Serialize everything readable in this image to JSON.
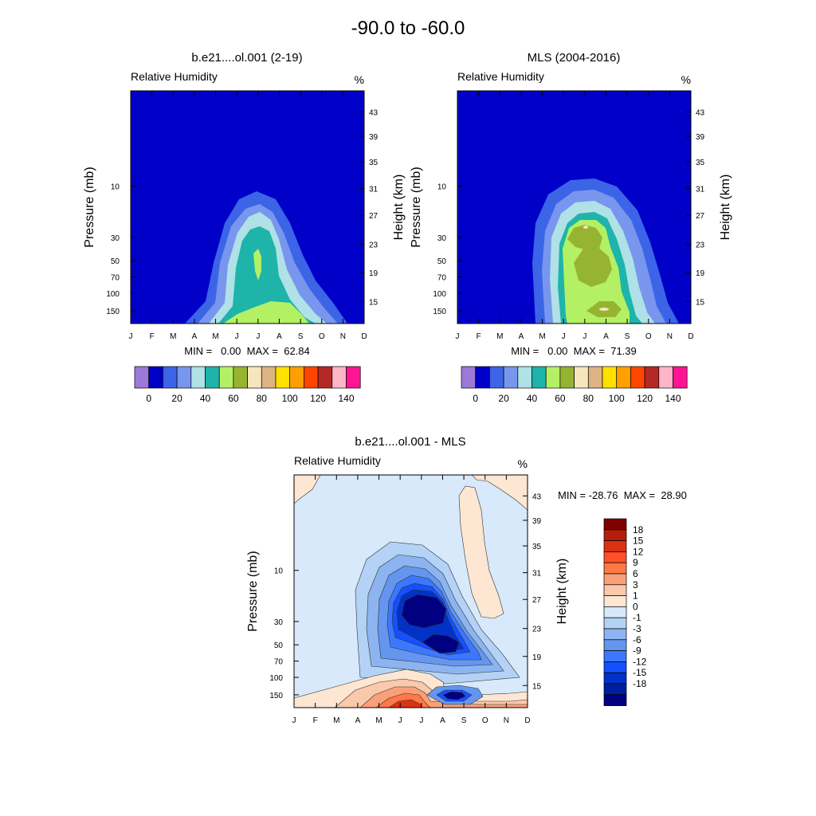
{
  "figure": {
    "title": "-90.0 to -60.0"
  },
  "palettes": {
    "abs_colors": [
      "#9b79d9",
      "#0000c8",
      "#3c64e6",
      "#7896ee",
      "#afe1e6",
      "#1eb4aa",
      "#b4f064",
      "#96b432",
      "#f5e6be",
      "#dcb482",
      "#ffe100",
      "#ffa000",
      "#ff4600",
      "#b42828",
      "#ffb4c8",
      "#ff1493"
    ],
    "abs_labels": [
      "0",
      "20",
      "40",
      "60",
      "80",
      "100",
      "120",
      "140"
    ],
    "diff_colors": [
      "#000080",
      "#001ea0",
      "#0032c8",
      "#1450ff",
      "#3c78ff",
      "#6496f0",
      "#8cb4f0",
      "#b4d2f5",
      "#d7e9fa",
      "#fde6d2",
      "#fac8aa",
      "#faa078",
      "#ff7846",
      "#ff5028",
      "#dc3214",
      "#b41e0a",
      "#800000"
    ],
    "diff_labels": [
      "18",
      "15",
      "12",
      "9",
      "6",
      "3",
      "1",
      "0",
      "-1",
      "-3",
      "-6",
      "-9",
      "-12",
      "-15",
      "-18"
    ]
  },
  "chart_data": [
    {
      "type": "heatmap",
      "panel": "model",
      "title": "b.e21....ol.001 (2-19)",
      "left_string": "Relative Humidity",
      "right_string": "%",
      "xlabel": "",
      "ylabel": "Pressure (mb)",
      "ylabel_right": "Height (km)",
      "x_ticks": [
        "J",
        "F",
        "M",
        "A",
        "M",
        "J",
        "J",
        "A",
        "S",
        "O",
        "N",
        "D"
      ],
      "pressure_ticks": [
        "10",
        "30",
        "50",
        "70",
        "100",
        "150"
      ],
      "height_ticks": [
        "43",
        "39",
        "35",
        "31",
        "27",
        "23",
        "19",
        "15"
      ],
      "stats": "MIN =   0.00  MAX =  62.84",
      "min": 0.0,
      "max": 62.84,
      "contour_levels": [
        0,
        10,
        20,
        30,
        40,
        50,
        60,
        70,
        80,
        90,
        100,
        110,
        120,
        130,
        140
      ],
      "colorbar": "absolute"
    },
    {
      "type": "heatmap",
      "panel": "obs",
      "title": "MLS (2004-2016)",
      "left_string": "Relative Humidity",
      "right_string": "%",
      "xlabel": "",
      "ylabel": "Pressure (mb)",
      "ylabel_right": "Height (km)",
      "x_ticks": [
        "J",
        "F",
        "M",
        "A",
        "M",
        "J",
        "J",
        "A",
        "S",
        "O",
        "N",
        "D"
      ],
      "pressure_ticks": [
        "10",
        "30",
        "50",
        "70",
        "100",
        "150"
      ],
      "height_ticks": [
        "43",
        "39",
        "35",
        "31",
        "27",
        "23",
        "19",
        "15"
      ],
      "stats": "MIN =   0.00  MAX =  71.39",
      "min": 0.0,
      "max": 71.39,
      "contour_levels": [
        0,
        10,
        20,
        30,
        40,
        50,
        60,
        70,
        80,
        90,
        100,
        110,
        120,
        130,
        140
      ],
      "colorbar": "absolute"
    },
    {
      "type": "heatmap",
      "panel": "difference",
      "title": "b.e21....ol.001 - MLS",
      "left_string": "Relative Humidity",
      "right_string": "%",
      "xlabel": "",
      "ylabel": "Pressure (mb)",
      "ylabel_right": "Height (km)",
      "x_ticks": [
        "J",
        "F",
        "M",
        "A",
        "M",
        "J",
        "J",
        "A",
        "S",
        "O",
        "N",
        "D"
      ],
      "pressure_ticks": [
        "10",
        "30",
        "50",
        "70",
        "100",
        "150"
      ],
      "height_ticks": [
        "43",
        "39",
        "35",
        "31",
        "27",
        "23",
        "19",
        "15"
      ],
      "stats": "MIN = -28.76  MAX =  28.90",
      "min": -28.76,
      "max": 28.9,
      "contour_levels": [
        -18,
        -15,
        -12,
        -9,
        -6,
        -3,
        -1,
        0,
        1,
        3,
        6,
        9,
        12,
        15,
        18
      ],
      "colorbar": "difference"
    }
  ]
}
